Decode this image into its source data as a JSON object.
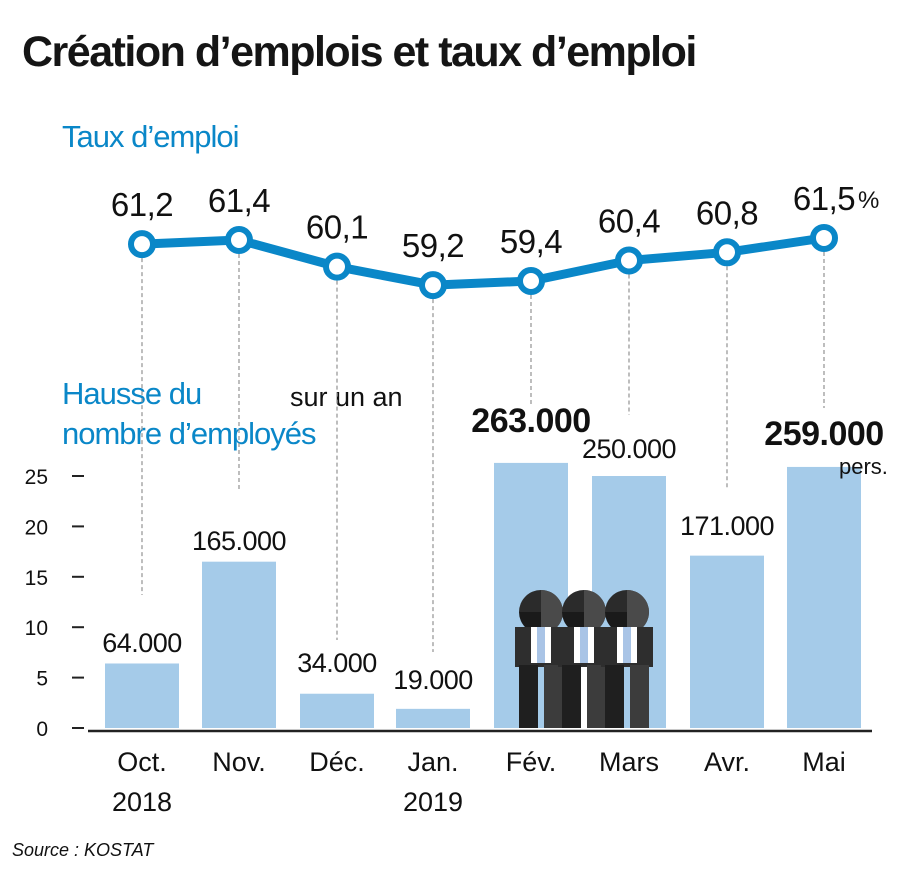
{
  "title": "Création d’emplois et taux d’emploi",
  "line_label": "Taux d’emploi",
  "bar_label_line1": "Hausse du",
  "bar_label_line2": "nombre d’employés",
  "subtitle": "sur un an",
  "source": "Source : KOSTAT",
  "colors": {
    "line": "#0a87c8",
    "bar": "#a5cbe9",
    "text": "#111111",
    "accent": "#0a87c8"
  },
  "icons": [
    "businessmen-icon"
  ],
  "chart_data": [
    {
      "type": "line",
      "name": "Taux d’emploi",
      "unit": "%",
      "categories": [
        "Oct. 2018",
        "Nov.",
        "Déc.",
        "Jan. 2019",
        "Fév.",
        "Mars",
        "Avr.",
        "Mai"
      ],
      "values": [
        61.2,
        61.4,
        60.1,
        59.2,
        59.4,
        60.4,
        60.8,
        61.5
      ],
      "value_labels": [
        "61,2",
        "61,4",
        "60,1",
        "59,2",
        "59,4",
        "60,4",
        "60,8",
        "61,5"
      ],
      "unit_label": "%"
    },
    {
      "type": "bar",
      "name": "Hausse du nombre d’employés",
      "unit_label": "pers.",
      "categories": [
        "Oct. 2018",
        "Nov.",
        "Déc.",
        "Jan. 2019",
        "Fév.",
        "Mars",
        "Avr.",
        "Mai"
      ],
      "tick_labels": [
        [
          "Oct.",
          "2018"
        ],
        [
          "Nov."
        ],
        [
          "Déc."
        ],
        [
          "Jan.",
          "2019"
        ],
        [
          "Fév."
        ],
        [
          "Mars"
        ],
        [
          "Avr."
        ],
        [
          "Mai"
        ]
      ],
      "values": [
        64000,
        165000,
        34000,
        19000,
        263000,
        250000,
        171000,
        259000
      ],
      "value_labels": [
        "64.000",
        "165.000",
        "34.000",
        "19.000",
        "263.000",
        "250.000",
        "171.000",
        "259.000"
      ],
      "ylim": [
        0,
        25
      ],
      "yticks": [
        0,
        5,
        10,
        15,
        20,
        25
      ],
      "grid": false
    }
  ]
}
